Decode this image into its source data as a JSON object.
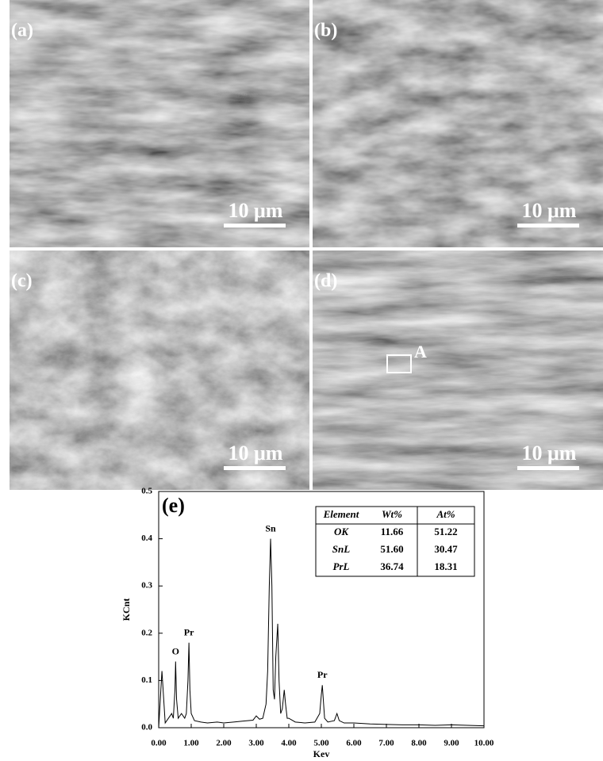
{
  "panels": [
    {
      "label": "(a)",
      "scale_bar": "10 μm"
    },
    {
      "label": "(b)",
      "scale_bar": "10 μm"
    },
    {
      "label": "(c)",
      "scale_bar": "10 μm"
    },
    {
      "label": "(d)",
      "scale_bar": "10 μm",
      "marker": "A"
    }
  ],
  "chart_data": {
    "type": "line",
    "panel_label": "(e)",
    "x_label": "Kev",
    "y_label": "KCnt",
    "x": [
      0.0,
      0.1,
      0.2,
      0.3,
      0.4,
      0.45,
      0.5,
      0.52,
      0.55,
      0.6,
      0.7,
      0.8,
      0.85,
      0.9,
      0.93,
      0.96,
      1.0,
      1.1,
      1.3,
      1.5,
      1.8,
      2.0,
      2.3,
      2.6,
      2.9,
      3.0,
      3.1,
      3.2,
      3.3,
      3.35,
      3.4,
      3.44,
      3.48,
      3.52,
      3.56,
      3.6,
      3.66,
      3.7,
      3.75,
      3.8,
      3.86,
      3.9,
      3.95,
      4.0,
      4.2,
      4.5,
      4.8,
      4.95,
      5.0,
      5.03,
      5.06,
      5.1,
      5.2,
      5.4,
      5.48,
      5.55,
      5.7,
      6.0,
      6.5,
      7.0,
      7.5,
      8.0,
      8.5,
      9.0,
      9.5,
      10.0
    ],
    "values": [
      0.0,
      0.12,
      0.01,
      0.02,
      0.03,
      0.02,
      0.08,
      0.14,
      0.06,
      0.02,
      0.03,
      0.02,
      0.03,
      0.1,
      0.18,
      0.08,
      0.03,
      0.015,
      0.012,
      0.01,
      0.012,
      0.01,
      0.012,
      0.014,
      0.016,
      0.025,
      0.018,
      0.02,
      0.05,
      0.12,
      0.3,
      0.4,
      0.3,
      0.08,
      0.06,
      0.15,
      0.22,
      0.1,
      0.03,
      0.04,
      0.08,
      0.05,
      0.02,
      0.02,
      0.012,
      0.01,
      0.012,
      0.03,
      0.07,
      0.09,
      0.06,
      0.02,
      0.012,
      0.015,
      0.03,
      0.015,
      0.01,
      0.01,
      0.008,
      0.007,
      0.006,
      0.006,
      0.005,
      0.006,
      0.005,
      0.004
    ],
    "color": "#000000",
    "xlim": [
      0,
      10
    ],
    "ylim": [
      0,
      0.5
    ],
    "xticks": [
      {
        "value": 0,
        "label": "0.00"
      },
      {
        "value": 1,
        "label": "1.00"
      },
      {
        "value": 2,
        "label": "2.00"
      },
      {
        "value": 3,
        "label": "3.00"
      },
      {
        "value": 4,
        "label": "4.00"
      },
      {
        "value": 5,
        "label": "5.00"
      },
      {
        "value": 6,
        "label": "6.00"
      },
      {
        "value": 7,
        "label": "7.00"
      },
      {
        "value": 8,
        "label": "8.00"
      },
      {
        "value": 9,
        "label": "9.00"
      },
      {
        "value": 10,
        "label": "10.00"
      }
    ],
    "yticks": [
      {
        "value": 0,
        "label": "0.0"
      },
      {
        "value": 0.1,
        "label": "0.1"
      },
      {
        "value": 0.2,
        "label": "0.2"
      },
      {
        "value": 0.3,
        "label": "0.3"
      },
      {
        "value": 0.4,
        "label": "0.4"
      },
      {
        "value": 0.5,
        "label": "0.5"
      }
    ],
    "annotations": [
      {
        "text": "O",
        "x": 0.52
      },
      {
        "text": "Pr",
        "x": 0.93
      },
      {
        "text": "Sn",
        "x": 3.44
      },
      {
        "text": "Pr",
        "x": 5.03
      }
    ],
    "table": {
      "header": [
        "Element",
        "Wt%",
        "At%"
      ],
      "rows": [
        [
          "OK",
          "11.66",
          "51.22"
        ],
        [
          "SnL",
          "51.60",
          "30.47"
        ],
        [
          "PrL",
          "36.74",
          "18.31"
        ]
      ]
    }
  }
}
